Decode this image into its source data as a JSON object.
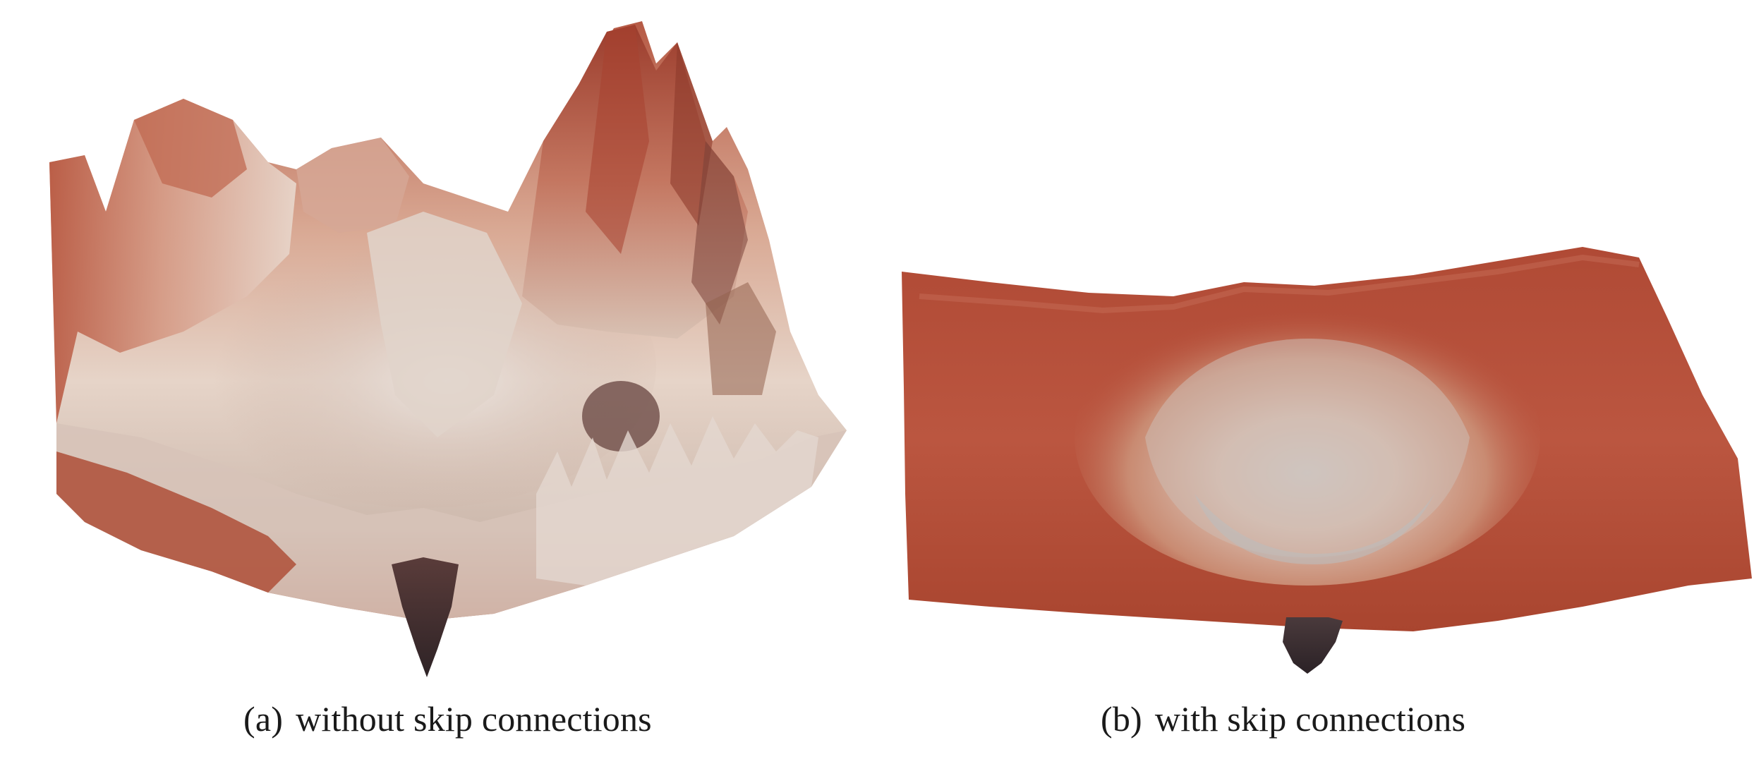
{
  "figure": {
    "panels": [
      {
        "tag": "(a)",
        "caption": "without skip connections"
      },
      {
        "tag": "(b)",
        "caption": "with skip connections"
      }
    ]
  }
}
